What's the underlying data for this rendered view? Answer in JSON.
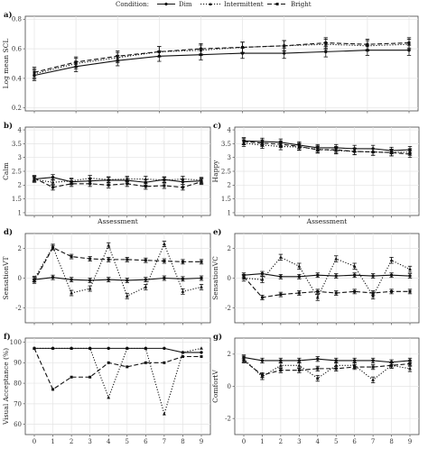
{
  "legend": {
    "title": "Condition:",
    "items": [
      {
        "label": "Dim",
        "dash": "solid"
      },
      {
        "label": "Intermittent",
        "dash": "dotted"
      },
      {
        "label": "Bright",
        "dash": "dashed"
      }
    ]
  },
  "chart_data": [
    {
      "type": "line",
      "panel": "a)",
      "xlabel": "",
      "ylabel": "Log mean SCL",
      "categories": [
        0,
        1,
        2,
        3,
        4,
        5,
        6,
        7,
        8,
        9
      ],
      "ylim": [
        0.18,
        0.82
      ],
      "yticks": [
        0.2,
        0.4,
        0.6,
        0.8
      ],
      "show_xticks": false,
      "series": [
        {
          "name": "Dim",
          "values": [
            0.42,
            0.48,
            0.52,
            0.55,
            0.56,
            0.57,
            0.57,
            0.58,
            0.59,
            0.59
          ],
          "err": 0.035
        },
        {
          "name": "Intermittent",
          "values": [
            0.43,
            0.5,
            0.54,
            0.58,
            0.59,
            0.61,
            0.62,
            0.63,
            0.62,
            0.63
          ],
          "err": 0.035
        },
        {
          "name": "Bright",
          "values": [
            0.44,
            0.51,
            0.55,
            0.58,
            0.6,
            0.61,
            0.62,
            0.64,
            0.63,
            0.64
          ],
          "err": 0.035
        }
      ]
    },
    {
      "type": "line",
      "panel": "b)",
      "xlabel": "Assessment",
      "ylabel": "Calm",
      "categories": [
        0,
        1,
        2,
        3,
        4,
        5,
        6,
        7,
        8,
        9
      ],
      "ylim": [
        0.9,
        4.1
      ],
      "yticks": [
        1.0,
        1.5,
        2.0,
        2.5,
        3.0,
        3.5,
        4.0
      ],
      "show_xticks": false,
      "series": [
        {
          "name": "Dim",
          "values": [
            2.22,
            2.28,
            2.12,
            2.15,
            2.18,
            2.17,
            2.1,
            2.2,
            2.12,
            2.15
          ],
          "err": 0.1
        },
        {
          "name": "Intermittent",
          "values": [
            2.2,
            2.1,
            2.15,
            2.25,
            2.2,
            2.22,
            2.22,
            2.18,
            2.22,
            2.18
          ],
          "err": 0.1
        },
        {
          "name": "Bright",
          "values": [
            2.25,
            1.92,
            2.05,
            2.05,
            2.0,
            2.05,
            1.95,
            1.98,
            1.92,
            2.12
          ],
          "err": 0.1
        }
      ]
    },
    {
      "type": "line",
      "panel": "c)",
      "xlabel": "Assessment",
      "ylabel": "Happy",
      "categories": [
        0,
        1,
        2,
        3,
        4,
        5,
        6,
        7,
        8,
        9
      ],
      "ylim": [
        0.9,
        4.1
      ],
      "yticks": [
        1.0,
        1.5,
        2.0,
        2.5,
        3.0,
        3.5,
        4.0
      ],
      "show_xticks": false,
      "series": [
        {
          "name": "Dim",
          "values": [
            3.6,
            3.58,
            3.55,
            3.45,
            3.35,
            3.35,
            3.32,
            3.32,
            3.25,
            3.28
          ],
          "err": 0.12
        },
        {
          "name": "Intermittent",
          "values": [
            3.52,
            3.45,
            3.4,
            3.38,
            3.3,
            3.25,
            3.22,
            3.2,
            3.18,
            3.2
          ],
          "err": 0.12
        },
        {
          "name": "Bright",
          "values": [
            3.58,
            3.52,
            3.48,
            3.4,
            3.28,
            3.28,
            3.22,
            3.2,
            3.18,
            3.12
          ],
          "err": 0.12
        }
      ]
    },
    {
      "type": "line",
      "panel": "d)",
      "xlabel": "",
      "ylabel": "SensationVT",
      "categories": [
        0,
        1,
        2,
        3,
        4,
        5,
        6,
        7,
        8,
        9
      ],
      "ylim": [
        -3.0,
        3.0
      ],
      "yticks": [
        -2,
        0,
        2
      ],
      "show_xticks": false,
      "series": [
        {
          "name": "Dim",
          "values": [
            -0.1,
            0.05,
            -0.1,
            -0.15,
            -0.1,
            -0.15,
            -0.1,
            0.0,
            -0.05,
            0.0
          ],
          "err": 0.15
        },
        {
          "name": "Intermittent",
          "values": [
            -0.05,
            2.1,
            -1.0,
            -0.7,
            2.2,
            -1.2,
            -0.6,
            2.3,
            -0.9,
            -0.6
          ],
          "err": 0.18
        },
        {
          "name": "Bright",
          "values": [
            -0.2,
            2.05,
            1.45,
            1.3,
            1.25,
            1.25,
            1.2,
            1.15,
            1.1,
            1.1
          ],
          "err": 0.15
        }
      ]
    },
    {
      "type": "line",
      "panel": "e)",
      "xlabel": "",
      "ylabel": "SensationVC",
      "categories": [
        0,
        1,
        2,
        3,
        4,
        5,
        6,
        7,
        8,
        9
      ],
      "ylim": [
        -3.0,
        3.0
      ],
      "yticks": [
        -2,
        0,
        2
      ],
      "show_xticks": false,
      "series": [
        {
          "name": "Dim",
          "values": [
            0.2,
            0.3,
            0.1,
            0.1,
            0.2,
            0.15,
            0.2,
            0.15,
            0.2,
            0.15
          ],
          "err": 0.15
        },
        {
          "name": "Intermittent",
          "values": [
            0.0,
            -0.1,
            1.4,
            0.8,
            -1.3,
            1.3,
            0.8,
            -1.2,
            1.2,
            0.6
          ],
          "err": 0.2
        },
        {
          "name": "Bright",
          "values": [
            0.1,
            -1.3,
            -1.1,
            -1.0,
            -0.9,
            -1.0,
            -0.9,
            -1.0,
            -0.9,
            -0.9
          ],
          "err": 0.15
        }
      ]
    },
    {
      "type": "line",
      "panel": "f)",
      "xlabel": "",
      "ylabel": "Visual Acceptance (%)",
      "categories": [
        0,
        1,
        2,
        3,
        4,
        5,
        6,
        7,
        8,
        9
      ],
      "ylim": [
        55,
        102
      ],
      "yticks": [
        60,
        70,
        80,
        90,
        100
      ],
      "show_xticks": true,
      "series": [
        {
          "name": "Dim",
          "values": [
            97,
            97,
            97,
            97,
            97,
            97,
            97,
            97,
            95,
            95
          ],
          "err": 0
        },
        {
          "name": "Intermittent",
          "values": [
            97,
            97,
            97,
            97,
            73,
            97,
            97,
            65,
            95,
            97
          ],
          "err": 0
        },
        {
          "name": "Bright",
          "values": [
            97,
            77,
            83,
            83,
            90,
            88,
            90,
            90,
            93,
            93
          ],
          "err": 0
        }
      ]
    },
    {
      "type": "line",
      "panel": "g)",
      "xlabel": "",
      "ylabel": "ComfortV",
      "categories": [
        0,
        1,
        2,
        3,
        4,
        5,
        6,
        7,
        8,
        9
      ],
      "ylim": [
        -3.0,
        3.0
      ],
      "yticks": [
        -2,
        0,
        2
      ],
      "show_xticks": true,
      "series": [
        {
          "name": "Dim",
          "values": [
            1.8,
            1.6,
            1.6,
            1.6,
            1.7,
            1.6,
            1.6,
            1.6,
            1.5,
            1.6
          ],
          "err": 0.15
        },
        {
          "name": "Intermittent",
          "values": [
            1.7,
            0.6,
            1.3,
            1.3,
            0.5,
            1.3,
            1.3,
            0.4,
            1.3,
            1.1
          ],
          "err": 0.18
        },
        {
          "name": "Bright",
          "values": [
            1.6,
            0.7,
            1.0,
            1.0,
            1.1,
            1.1,
            1.2,
            1.2,
            1.3,
            1.4
          ],
          "err": 0.15
        }
      ]
    }
  ]
}
